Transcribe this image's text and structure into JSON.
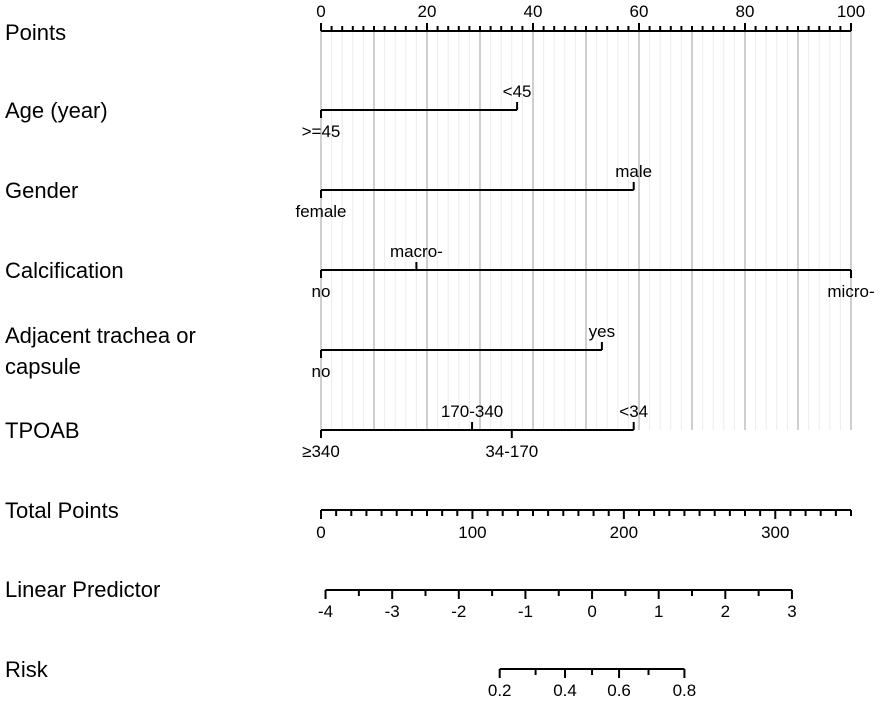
{
  "chart_data": {
    "type": "nomogram",
    "points_scale": {
      "label": "Points",
      "min": 0,
      "max": 100,
      "major_ticks": [
        0,
        20,
        40,
        60,
        80,
        100
      ],
      "tick_labels": [
        "0",
        "20",
        "40",
        "60",
        "80",
        "100"
      ],
      "minor_step": 2
    },
    "grid": true,
    "variables": [
      {
        "label_lines": [
          "Age (year)"
        ],
        "levels": [
          {
            "label": ">=45",
            "points": 0,
            "pos": "below"
          },
          {
            "label": "<45",
            "points": 37,
            "pos": "above"
          }
        ]
      },
      {
        "label_lines": [
          "Gender"
        ],
        "levels": [
          {
            "label": "female",
            "points": 0,
            "pos": "below"
          },
          {
            "label": "male",
            "points": 59,
            "pos": "above"
          }
        ]
      },
      {
        "label_lines": [
          "Calcification"
        ],
        "levels": [
          {
            "label": "no",
            "points": 0,
            "pos": "below"
          },
          {
            "label": "macro-",
            "points": 18,
            "pos": "above"
          },
          {
            "label": "micro-",
            "points": 100,
            "pos": "below"
          }
        ]
      },
      {
        "label_lines": [
          "Adjacent trachea or",
          "capsule"
        ],
        "levels": [
          {
            "label": "no",
            "points": 0,
            "pos": "below"
          },
          {
            "label": "yes",
            "points": 53,
            "pos": "above"
          }
        ]
      },
      {
        "label_lines": [
          "TPOAB"
        ],
        "levels": [
          {
            "label": "≥340",
            "points": 0,
            "pos": "below"
          },
          {
            "label": "170-340",
            "points": 28.5,
            "pos": "above"
          },
          {
            "label": "34-170",
            "points": 36,
            "pos": "below"
          },
          {
            "label": "<34",
            "points": 59,
            "pos": "above"
          }
        ]
      }
    ],
    "total_points": {
      "label": "Total Points",
      "min": 0,
      "max": 350,
      "major_ticks": [
        0,
        100,
        200,
        300
      ],
      "tick_labels": [
        "0",
        "100",
        "200",
        "300"
      ],
      "minor_step": 10
    },
    "linear_predictor": {
      "label": "Linear Predictor",
      "min": -4,
      "max": 3,
      "major_ticks": [
        -4,
        -3,
        -2,
        -1,
        0,
        1,
        2,
        3
      ],
      "tick_labels": [
        "-4",
        "-3",
        "-2",
        "-1",
        "0",
        "1",
        "2",
        "3"
      ],
      "minor_step": 0.5,
      "total_points_at_min": 3,
      "total_points_at_max": 311
    },
    "risk": {
      "label": "Risk",
      "ticks": [
        0.2,
        0.4,
        0.6,
        0.8
      ],
      "tick_labels": [
        "0.2",
        "0.4",
        "0.6",
        "0.8"
      ],
      "minor_ticks": [
        0.3,
        0.5,
        0.7
      ]
    }
  }
}
